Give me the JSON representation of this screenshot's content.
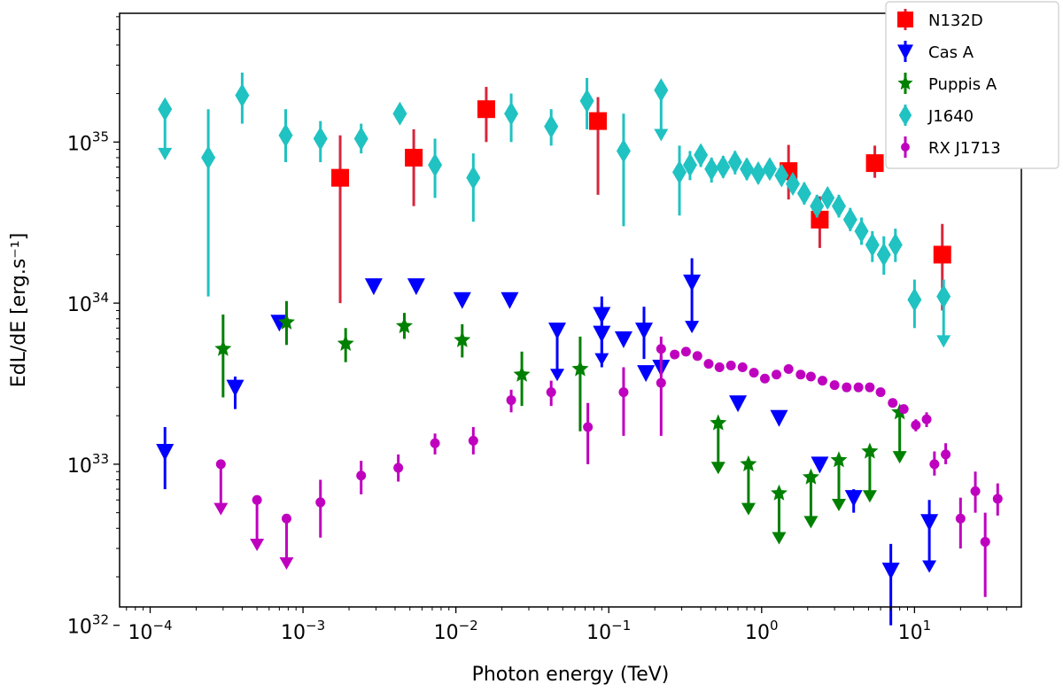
{
  "chart_data": {
    "type": "scatter",
    "xscale": "log",
    "yscale": "log",
    "xlim": [
      6.31e-05,
      50
    ],
    "ylim": [
      1.3e+32,
      6.3e+35
    ],
    "xlabel": "Photon energy (TeV)",
    "ylabel": "EdL/dE [erg.s⁻¹]",
    "x_ticks": [
      {
        "value": 0.0001,
        "base": "10",
        "exp": "−4"
      },
      {
        "value": 0.001,
        "base": "10",
        "exp": "−3"
      },
      {
        "value": 0.01,
        "base": "10",
        "exp": "−2"
      },
      {
        "value": 0.1,
        "base": "10",
        "exp": "−1"
      },
      {
        "value": 1,
        "base": "10",
        "exp": "0"
      },
      {
        "value": 10,
        "base": "10",
        "exp": "1"
      }
    ],
    "y_ticks": [
      {
        "value": 1e+32,
        "base": "10",
        "exp": "32"
      },
      {
        "value": 1e+33,
        "base": "10",
        "exp": "33"
      },
      {
        "value": 1e+34,
        "base": "10",
        "exp": "34"
      },
      {
        "value": 1e+35,
        "base": "10",
        "exp": "35"
      }
    ],
    "legend_position": "top-right",
    "series": [
      {
        "name": "N132D",
        "color": "#ff0000",
        "errcolor": "#d7263d",
        "marker": "square",
        "points": [
          {
            "x": 0.00175,
            "y": 6e+34,
            "lo": 1e+34,
            "hi": 1.1e+35
          },
          {
            "x": 0.0053,
            "y": 8e+34,
            "lo": 4e+34,
            "hi": 1.2e+35
          },
          {
            "x": 0.0158,
            "y": 1.6e+35,
            "lo": 1e+35,
            "hi": 2.2e+35
          },
          {
            "x": 0.085,
            "y": 1.35e+35,
            "lo": 4.7e+34,
            "hi": 1.9e+35
          },
          {
            "x": 1.5,
            "y": 6.6e+34,
            "lo": 4.4e+34,
            "hi": 9.6e+34
          },
          {
            "x": 2.4,
            "y": 3.3e+34,
            "lo": 2.2e+34,
            "hi": 4.6e+34
          },
          {
            "x": 5.5,
            "y": 7.4e+34,
            "lo": 6e+34,
            "hi": 9.5e+34
          },
          {
            "x": 15.2,
            "y": 2e+34,
            "lo": 9e+33,
            "hi": 3.1e+34
          }
        ]
      },
      {
        "name": "Cas A",
        "color": "#0000ff",
        "errcolor": "#0000ff",
        "marker": "triangle-down",
        "points": [
          {
            "x": 0.000125,
            "y": 1.2e+33,
            "lo": 7e+32,
            "hi": 1.7e+33
          },
          {
            "x": 0.00036,
            "y": 3e+33,
            "lo": 2.2e+33,
            "hi": 3.5e+33
          },
          {
            "x": 0.0007,
            "y": 7.6e+33,
            "lo": 7e+33,
            "hi": 8.2e+33
          },
          {
            "x": 0.0029,
            "y": 1.28e+34
          },
          {
            "x": 0.0055,
            "y": 1.28e+34
          },
          {
            "x": 0.011,
            "y": 1.05e+34
          },
          {
            "x": 0.0225,
            "y": 1.05e+34
          },
          {
            "x": 0.046,
            "y": 6.8e+33,
            "hi": 7.5e+33,
            "ul": true
          },
          {
            "x": 0.09,
            "y": 8.5e+33,
            "hi": 1.1e+34,
            "ul": true
          },
          {
            "x": 0.09,
            "y": 6.5e+33,
            "lo": 4e+33,
            "hi": 1e+34
          },
          {
            "x": 0.125,
            "y": 6e+33
          },
          {
            "x": 0.17,
            "y": 6.8e+33,
            "lo": 4.5e+33,
            "hi": 9.5e+33
          },
          {
            "x": 0.175,
            "y": 3.7e+33
          },
          {
            "x": 0.22,
            "y": 4e+33,
            "lo": 3.6e+33,
            "hi": 4.6e+33
          },
          {
            "x": 0.35,
            "y": 1.35e+34,
            "hi": 1.9e+34,
            "ul": true
          },
          {
            "x": 0.7,
            "y": 2.4e+33
          },
          {
            "x": 1.3,
            "y": 1.95e+33
          },
          {
            "x": 2.4,
            "y": 1e+33
          },
          {
            "x": 4.0,
            "y": 6.2e+32,
            "lo": 5e+32,
            "hi": 7e+32
          },
          {
            "x": 7.0,
            "y": 2.2e+32,
            "lo": 1e+32,
            "hi": 3.2e+32
          },
          {
            "x": 12.5,
            "y": 4.4e+32,
            "hi": 6e+32,
            "ul": true
          }
        ]
      },
      {
        "name": "Puppis A",
        "color": "#008000",
        "errcolor": "#008000",
        "marker": "star",
        "points": [
          {
            "x": 0.0003,
            "y": 5.2e+33,
            "lo": 2.6e+33,
            "hi": 8.5e+33
          },
          {
            "x": 0.00078,
            "y": 7.6e+33,
            "lo": 5.5e+33,
            "hi": 1.03e+34
          },
          {
            "x": 0.0019,
            "y": 5.6e+33,
            "lo": 4.3e+33,
            "hi": 7e+33
          },
          {
            "x": 0.0046,
            "y": 7.2e+33,
            "lo": 6e+33,
            "hi": 8.7e+33
          },
          {
            "x": 0.011,
            "y": 5.9e+33,
            "lo": 4.6e+33,
            "hi": 7.4e+33
          },
          {
            "x": 0.027,
            "y": 3.6e+33,
            "lo": 2.3e+33,
            "hi": 5e+33
          },
          {
            "x": 0.065,
            "y": 3.9e+33,
            "lo": 1.6e+33,
            "hi": 6.2e+33
          },
          {
            "x": 0.52,
            "y": 1.8e+33,
            "ul": true
          },
          {
            "x": 0.82,
            "y": 1e+33,
            "ul": true
          },
          {
            "x": 1.3,
            "y": 6.6e+32,
            "ul": true
          },
          {
            "x": 2.1,
            "y": 8.3e+32,
            "ul": true
          },
          {
            "x": 3.2,
            "y": 1.06e+33,
            "ul": true
          },
          {
            "x": 5.1,
            "y": 1.2e+33,
            "ul": true
          },
          {
            "x": 8.0,
            "y": 2.1e+33,
            "ul": true
          }
        ]
      },
      {
        "name": "J1640",
        "color": "#20c2c2",
        "errcolor": "#20c2c2",
        "marker": "diamond",
        "points": [
          {
            "x": 0.000125,
            "y": 1.6e+35,
            "ul": true
          },
          {
            "x": 0.00024,
            "y": 8e+34,
            "lo": 1.1e+34,
            "hi": 1.6e+35
          },
          {
            "x": 0.0004,
            "y": 1.95e+35,
            "lo": 1.3e+35,
            "hi": 2.7e+35
          },
          {
            "x": 0.00077,
            "y": 1.1e+35,
            "lo": 7.5e+34,
            "hi": 1.6e+35
          },
          {
            "x": 0.0013,
            "y": 1.05e+35,
            "lo": 7.5e+34,
            "hi": 1.35e+35
          },
          {
            "x": 0.0024,
            "y": 1.05e+35,
            "lo": 8.5e+34,
            "hi": 1.3e+35
          },
          {
            "x": 0.0043,
            "y": 1.5e+35,
            "lo": 1.3e+35,
            "hi": 1.7e+35
          },
          {
            "x": 0.0073,
            "y": 7.2e+34,
            "lo": 4.5e+34,
            "hi": 1.05e+35
          },
          {
            "x": 0.013,
            "y": 6e+34,
            "lo": 3.2e+34,
            "hi": 8.5e+34
          },
          {
            "x": 0.023,
            "y": 1.5e+35,
            "lo": 1e+35,
            "hi": 2e+35
          },
          {
            "x": 0.042,
            "y": 1.25e+35,
            "lo": 9.5e+34,
            "hi": 1.6e+35
          },
          {
            "x": 0.072,
            "y": 1.8e+35,
            "lo": 1.2e+35,
            "hi": 2.5e+35
          },
          {
            "x": 0.125,
            "y": 8.8e+34,
            "lo": 3e+34,
            "hi": 1.5e+35
          },
          {
            "x": 0.22,
            "y": 2.1e+35,
            "ul": true
          },
          {
            "x": 0.29,
            "y": 6.5e+34,
            "lo": 3.5e+34,
            "hi": 9.5e+34
          },
          {
            "x": 0.34,
            "y": 7.2e+34,
            "lo": 5.8e+34,
            "hi": 8.8e+34
          },
          {
            "x": 0.4,
            "y": 8.3e+34,
            "lo": 7e+34,
            "hi": 9.6e+34
          },
          {
            "x": 0.47,
            "y": 6.8e+34,
            "lo": 5.6e+34,
            "hi": 8e+34
          },
          {
            "x": 0.56,
            "y": 7e+34,
            "lo": 6e+34,
            "hi": 8.2e+34
          },
          {
            "x": 0.67,
            "y": 7.5e+34,
            "lo": 6.3e+34,
            "hi": 8.8e+34
          },
          {
            "x": 0.8,
            "y": 6.8e+34,
            "lo": 5.8e+34,
            "hi": 7.9e+34
          },
          {
            "x": 0.95,
            "y": 6.4e+34,
            "lo": 5.5e+34,
            "hi": 7.4e+34
          },
          {
            "x": 1.13,
            "y": 6.8e+34,
            "lo": 5.9e+34,
            "hi": 7.8e+34
          },
          {
            "x": 1.35,
            "y": 6.2e+34,
            "lo": 5.4e+34,
            "hi": 7.1e+34
          },
          {
            "x": 1.6,
            "y": 5.5e+34,
            "lo": 4.8e+34,
            "hi": 6.3e+34
          },
          {
            "x": 1.9,
            "y": 4.8e+34,
            "lo": 4.1e+34,
            "hi": 5.6e+34
          },
          {
            "x": 2.3,
            "y": 4e+34,
            "lo": 3.4e+34,
            "hi": 4.7e+34
          },
          {
            "x": 2.7,
            "y": 4.5e+34,
            "lo": 3.9e+34,
            "hi": 5.2e+34
          },
          {
            "x": 3.2,
            "y": 4e+34,
            "lo": 3.4e+34,
            "hi": 4.7e+34
          },
          {
            "x": 3.8,
            "y": 3.3e+34,
            "lo": 2.8e+34,
            "hi": 3.9e+34
          },
          {
            "x": 4.5,
            "y": 2.8e+34,
            "lo": 2.3e+34,
            "hi": 3.4e+34
          },
          {
            "x": 5.3,
            "y": 2.3e+34,
            "lo": 1.8e+34,
            "hi": 2.8e+34
          },
          {
            "x": 6.3,
            "y": 2e+34,
            "lo": 1.5e+34,
            "hi": 2.6e+34
          },
          {
            "x": 7.5,
            "y": 2.3e+34,
            "lo": 1.8e+34,
            "hi": 2.9e+34
          },
          {
            "x": 10.0,
            "y": 1.05e+34,
            "lo": 7e+33,
            "hi": 1.4e+34
          },
          {
            "x": 15.5,
            "y": 1.1e+34,
            "hi": 1.4e+34,
            "ul": true
          }
        ]
      },
      {
        "name": "RX J1713",
        "color": "#bf00bf",
        "errcolor": "#bf00bf",
        "marker": "circle",
        "points": [
          {
            "x": 0.00029,
            "y": 1e+33,
            "ul": true
          },
          {
            "x": 0.0005,
            "y": 6e+32,
            "ul": true
          },
          {
            "x": 0.00078,
            "y": 4.6e+32,
            "ul": true
          },
          {
            "x": 0.0013,
            "y": 5.8e+32,
            "lo": 3.5e+32,
            "hi": 8e+32
          },
          {
            "x": 0.0024,
            "y": 8.5e+32,
            "lo": 6.5e+32,
            "hi": 1.05e+33
          },
          {
            "x": 0.0042,
            "y": 9.5e+32,
            "lo": 7.8e+32,
            "hi": 1.15e+33
          },
          {
            "x": 0.0073,
            "y": 1.35e+33,
            "lo": 1.15e+33,
            "hi": 1.55e+33
          },
          {
            "x": 0.013,
            "y": 1.4e+33,
            "lo": 1.15e+33,
            "hi": 1.7e+33
          },
          {
            "x": 0.023,
            "y": 2.5e+33,
            "lo": 2.1e+33,
            "hi": 2.9e+33
          },
          {
            "x": 0.042,
            "y": 2.8e+33,
            "lo": 2.3e+33,
            "hi": 3.3e+33
          },
          {
            "x": 0.073,
            "y": 1.7e+33,
            "lo": 1e+33,
            "hi": 2.4e+33
          },
          {
            "x": 0.125,
            "y": 2.8e+33,
            "lo": 1.5e+33,
            "hi": 4e+33
          },
          {
            "x": 0.22,
            "y": 3.2e+33,
            "lo": 1.5e+33,
            "hi": 4.8e+33
          },
          {
            "x": 0.22,
            "y": 5.2e+33,
            "lo": 4.2e+33,
            "hi": 6.2e+33
          },
          {
            "x": 0.27,
            "y": 4.8e+33
          },
          {
            "x": 0.32,
            "y": 5e+33
          },
          {
            "x": 0.38,
            "y": 4.7e+33
          },
          {
            "x": 0.45,
            "y": 4.2e+33
          },
          {
            "x": 0.53,
            "y": 4e+33
          },
          {
            "x": 0.63,
            "y": 4.1e+33
          },
          {
            "x": 0.75,
            "y": 4e+33
          },
          {
            "x": 0.89,
            "y": 3.7e+33
          },
          {
            "x": 1.05,
            "y": 3.4e+33
          },
          {
            "x": 1.25,
            "y": 3.6e+33
          },
          {
            "x": 1.5,
            "y": 3.9e+33
          },
          {
            "x": 1.8,
            "y": 3.6e+33
          },
          {
            "x": 2.1,
            "y": 3.5e+33
          },
          {
            "x": 2.5,
            "y": 3.3e+33
          },
          {
            "x": 3.0,
            "y": 3.1e+33
          },
          {
            "x": 3.6,
            "y": 3e+33
          },
          {
            "x": 4.3,
            "y": 3e+33
          },
          {
            "x": 5.1,
            "y": 3e+33
          },
          {
            "x": 6.0,
            "y": 2.8e+33
          },
          {
            "x": 7.2,
            "y": 2.4e+33
          },
          {
            "x": 8.5,
            "y": 2.2e+33
          },
          {
            "x": 10.2,
            "y": 1.75e+33,
            "lo": 1.6e+33,
            "hi": 1.9e+33
          },
          {
            "x": 12.0,
            "y": 1.9e+33,
            "lo": 1.7e+33,
            "hi": 2.1e+33
          },
          {
            "x": 13.5,
            "y": 1e+33,
            "lo": 8.5e+32,
            "hi": 1.2e+33
          },
          {
            "x": 16.0,
            "y": 1.15e+33,
            "lo": 1e+33,
            "hi": 1.35e+33
          },
          {
            "x": 20.0,
            "y": 4.6e+32,
            "lo": 3e+32,
            "hi": 6.2e+32
          },
          {
            "x": 25.0,
            "y": 6.8e+32,
            "lo": 5e+32,
            "hi": 9e+32
          },
          {
            "x": 29.0,
            "y": 3.3e+32,
            "lo": 1.5e+32,
            "hi": 5e+32
          },
          {
            "x": 35.0,
            "y": 6.1e+32,
            "lo": 4.8e+32,
            "hi": 7.6e+32
          }
        ]
      }
    ]
  }
}
